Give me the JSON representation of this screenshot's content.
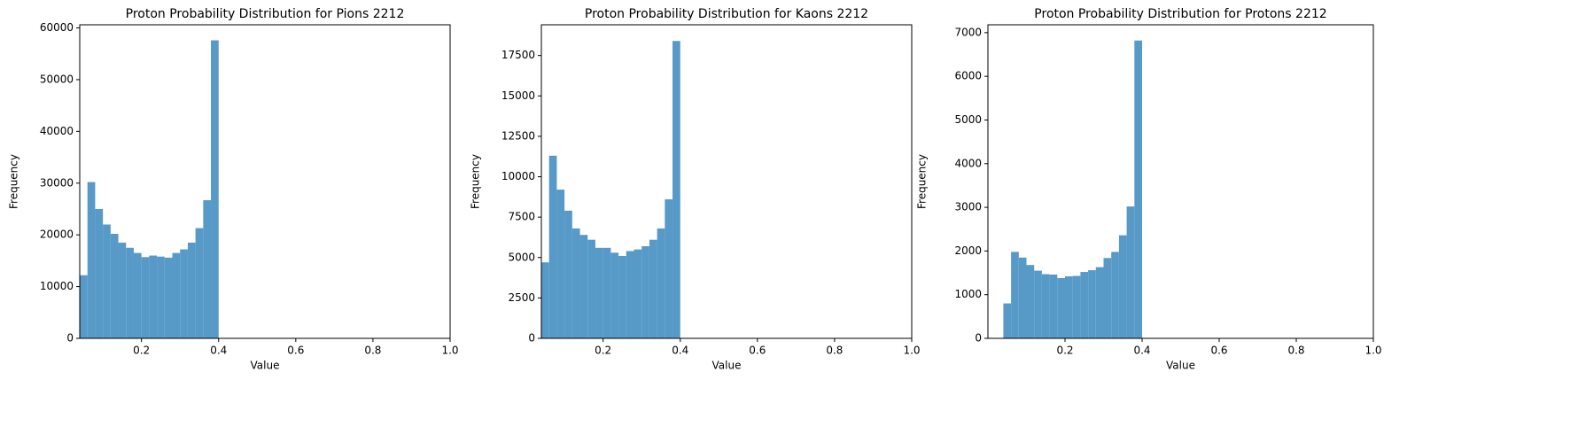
{
  "chart_data": [
    {
      "type": "histogram",
      "title": "Proton Probability Distribution for Pions 2212",
      "x_label": "Value",
      "y_label": "Frequency",
      "color": "#5799c7",
      "bins": [
        0.04,
        0.06,
        0.08,
        0.1,
        0.12,
        0.14,
        0.16,
        0.18,
        0.2,
        0.22,
        0.24,
        0.26,
        0.28,
        0.3,
        0.32,
        0.34,
        0.36,
        0.38,
        0.4
      ],
      "values": [
        12200,
        30200,
        25000,
        22000,
        20200,
        18500,
        17500,
        16500,
        15700,
        16000,
        15800,
        15600,
        16500,
        17200,
        18500,
        21300,
        26700,
        57600
      ],
      "xlim": [
        0.04,
        1.0
      ],
      "ylim": [
        0,
        60600
      ],
      "xticks": [
        0.2,
        0.4,
        0.6,
        0.8,
        {
          "value": 1.0,
          "label": "1.0"
        }
      ],
      "yticks": [
        0,
        10000,
        20000,
        30000,
        40000,
        50000,
        60000
      ]
    },
    {
      "type": "histogram",
      "title": "Proton Probability Distribution for Kaons 2212",
      "x_label": "Value",
      "y_label": "Frequency",
      "color": "#5799c7",
      "bins": [
        0.04,
        0.06,
        0.08,
        0.1,
        0.12,
        0.14,
        0.16,
        0.18,
        0.2,
        0.22,
        0.24,
        0.26,
        0.28,
        0.3,
        0.32,
        0.34,
        0.36,
        0.38,
        0.4
      ],
      "values": [
        4700,
        11300,
        9200,
        7900,
        6800,
        6400,
        6100,
        5600,
        5600,
        5300,
        5100,
        5400,
        5500,
        5700,
        6100,
        6800,
        8600,
        18400
      ],
      "xlim": [
        0.04,
        1.0
      ],
      "ylim": [
        0,
        19400
      ],
      "xticks": [
        0.2,
        0.4,
        0.6,
        0.8,
        {
          "value": 1.0,
          "label": "1.0"
        }
      ],
      "yticks": [
        0,
        2500,
        5000,
        7500,
        10000,
        12500,
        15000,
        17500
      ]
    },
    {
      "type": "histogram",
      "title": "Proton Probability Distribution for Protons 2212",
      "x_label": "Value",
      "y_label": "Frequency",
      "color": "#5799c7",
      "bins": [
        0.04,
        0.06,
        0.08,
        0.1,
        0.12,
        0.14,
        0.16,
        0.18,
        0.2,
        0.22,
        0.24,
        0.26,
        0.28,
        0.3,
        0.32,
        0.34,
        0.36,
        0.38,
        0.4
      ],
      "values": [
        800,
        1980,
        1850,
        1680,
        1550,
        1470,
        1460,
        1380,
        1420,
        1430,
        1520,
        1560,
        1630,
        1840,
        1980,
        2360,
        3020,
        6820
      ],
      "xlim": [
        0.0,
        1.0
      ],
      "ylim": [
        0,
        7180
      ],
      "xticks": [
        0.2,
        0.4,
        0.6,
        0.8,
        {
          "value": 1.0,
          "label": "1.0"
        }
      ],
      "yticks": [
        0,
        1000,
        2000,
        3000,
        4000,
        5000,
        6000,
        7000
      ]
    }
  ]
}
